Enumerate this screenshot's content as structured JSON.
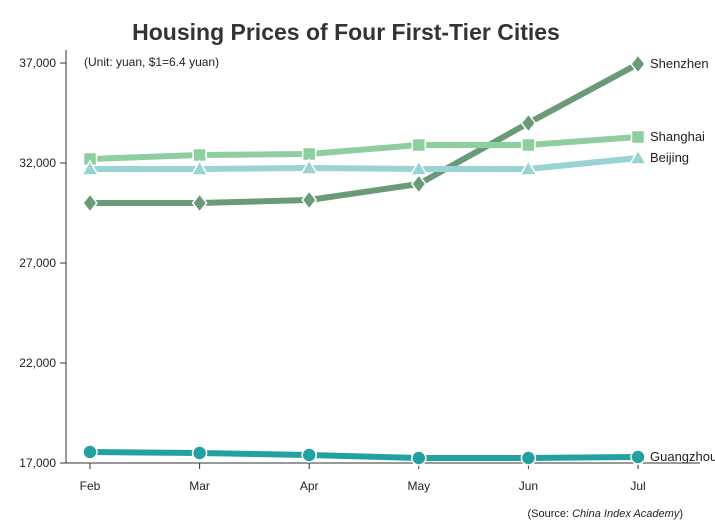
{
  "chart_data": {
    "type": "line",
    "title": "Housing Prices of Four First-Tier Cities",
    "note": "(Unit: yuan, $1=6.4 yuan)",
    "source_prefix": "(Source: ",
    "source_name": "China Index Academy",
    "source_suffix": ")",
    "categories": [
      "Feb",
      "Mar",
      "Apr",
      "May",
      "Jun",
      "Jul"
    ],
    "ylim": [
      17000,
      37000
    ],
    "yticks": [
      17000,
      22000,
      27000,
      32000,
      37000
    ],
    "ytick_labels": [
      "17,000",
      "22,000",
      "27,000",
      "32,000",
      "37,000"
    ],
    "grid": false,
    "series": [
      {
        "name": "Shenzhen",
        "color": "#6b9a79",
        "marker": "diamond",
        "values": [
          30000,
          30000,
          30150,
          30950,
          34000,
          36950
        ]
      },
      {
        "name": "Shanghai",
        "color": "#8dcf9e",
        "marker": "square",
        "values": [
          32200,
          32400,
          32450,
          32900,
          32900,
          33300
        ]
      },
      {
        "name": "Beijing",
        "color": "#99d3d3",
        "marker": "triangle",
        "values": [
          31700,
          31700,
          31750,
          31700,
          31700,
          32250
        ]
      },
      {
        "name": "Guangzhou",
        "color": "#25a0a0",
        "marker": "circle",
        "values": [
          17550,
          17500,
          17400,
          17250,
          17250,
          17300
        ]
      }
    ]
  }
}
